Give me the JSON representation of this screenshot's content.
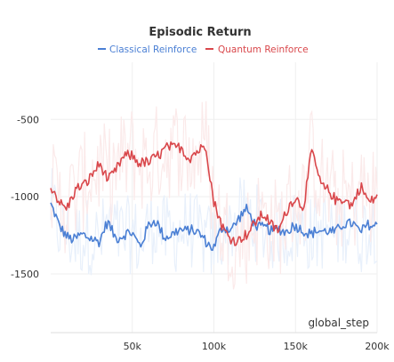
{
  "chart_data": {
    "type": "line",
    "title": "Episodic Return",
    "xlabel": "global_step",
    "ylabel": "",
    "xlim": [
      0,
      200000
    ],
    "ylim": [
      -1880,
      -130
    ],
    "x_ticks": [
      50000,
      100000,
      150000,
      200000
    ],
    "x_tick_labels": [
      "50k",
      "100k",
      "150k",
      "200k"
    ],
    "y_ticks": [
      -500,
      -1000,
      -1500
    ],
    "y_tick_labels": [
      "-500",
      "-1000",
      "-1500"
    ],
    "legend_position": "top-center",
    "grid": true,
    "x": [
      0,
      5000,
      10000,
      15000,
      20000,
      25000,
      30000,
      35000,
      40000,
      45000,
      50000,
      55000,
      60000,
      65000,
      70000,
      75000,
      80000,
      85000,
      90000,
      95000,
      100000,
      105000,
      110000,
      115000,
      120000,
      125000,
      130000,
      135000,
      140000,
      145000,
      150000,
      155000,
      160000,
      165000,
      170000,
      175000,
      180000,
      185000,
      190000,
      195000,
      200000
    ],
    "series": [
      {
        "name": "Classical Reinforce",
        "color": "#4a7fd4",
        "values": [
          -1050,
          -1200,
          -1240,
          -1280,
          -1260,
          -1250,
          -1300,
          -1170,
          -1250,
          -1260,
          -1240,
          -1300,
          -1200,
          -1160,
          -1250,
          -1260,
          -1210,
          -1200,
          -1250,
          -1280,
          -1320,
          -1220,
          -1200,
          -1140,
          -1100,
          -1160,
          -1200,
          -1240,
          -1190,
          -1230,
          -1200,
          -1200,
          -1250,
          -1230,
          -1200,
          -1240,
          -1180,
          -1150,
          -1250,
          -1180,
          -1170
        ]
      },
      {
        "name": "Quantum Reinforce",
        "color": "#d9474b",
        "values": [
          -950,
          -1030,
          -1060,
          -980,
          -920,
          -850,
          -810,
          -880,
          -820,
          -760,
          -720,
          -780,
          -800,
          -720,
          -690,
          -700,
          -660,
          -760,
          -720,
          -640,
          -1050,
          -1200,
          -1250,
          -1300,
          -1250,
          -1150,
          -1130,
          -1180,
          -1200,
          -1100,
          -1000,
          -1050,
          -720,
          -900,
          -950,
          -1050,
          -1000,
          -1050,
          -950,
          -1020,
          -990
        ]
      }
    ]
  }
}
